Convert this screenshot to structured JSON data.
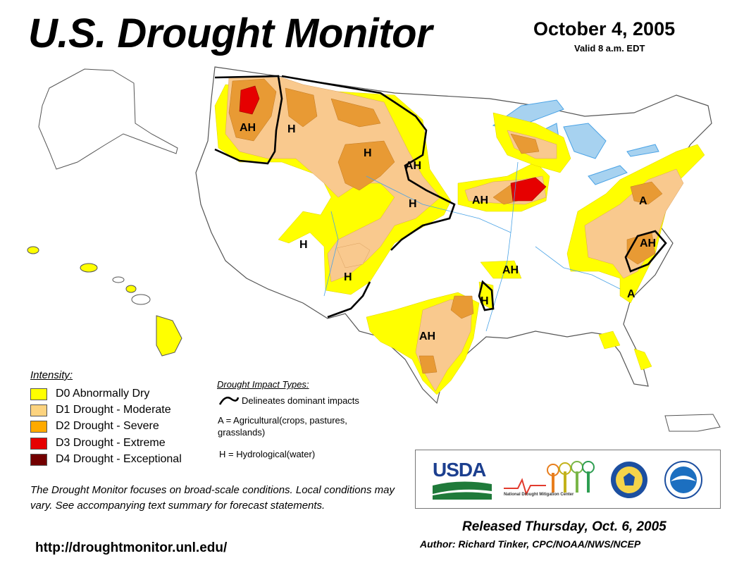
{
  "header": {
    "title": "U.S. Drought Monitor",
    "date": "October 4, 2005",
    "valid": "Valid 8 a.m. EDT"
  },
  "colors": {
    "d0": "#ffff00",
    "d1": "#fcd37f",
    "d2": "#ffaa00",
    "d3": "#e60000",
    "d4": "#730000",
    "d1_map": "#f9c98e",
    "d2_map": "#e89a34",
    "water": "#a7d2f0",
    "river": "#4aa3e6",
    "boundary": "#000000"
  },
  "map_labels": [
    "AH",
    "H",
    "H",
    "AH",
    "H",
    "AH",
    "A",
    "AH",
    "H",
    "H",
    "AH",
    "A",
    "H",
    "AH"
  ],
  "legend": {
    "title": "Intensity:",
    "items": [
      {
        "code": "D0",
        "label": "D0 Abnormally Dry"
      },
      {
        "code": "D1",
        "label": "D1 Drought - Moderate"
      },
      {
        "code": "D2",
        "label": "D2 Drought - Severe"
      },
      {
        "code": "D3",
        "label": "D3 Drought - Extreme"
      },
      {
        "code": "D4",
        "label": "D4 Drought - Exceptional"
      }
    ]
  },
  "impacts": {
    "title": "Drought Impact Types:",
    "line_text": "Delineates dominant impacts",
    "a_text": "A = Agricultural(crops, pastures, grasslands)",
    "h_text": "H = Hydrological(water)"
  },
  "logos": {
    "usda": "USDA",
    "ndmc": "National Drought Mitigation Center"
  },
  "footer": {
    "note": "The Drought Monitor focuses on broad-scale conditions. Local conditions may vary. See accompanying text summary for forecast statements.",
    "url": "http://droughtmonitor.unl.edu/",
    "released": "Released Thursday, Oct. 6, 2005",
    "author": "Author: Richard Tinker, CPC/NOAA/NWS/NCEP"
  }
}
